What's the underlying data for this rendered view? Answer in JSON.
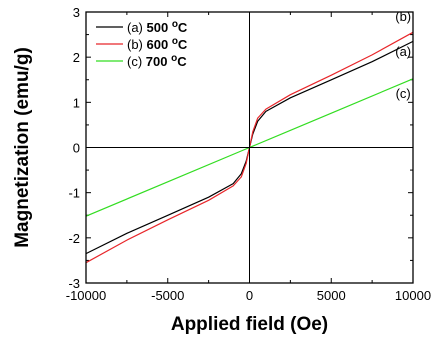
{
  "chart_data": {
    "type": "line",
    "xlabel": "Applied field (Oe)",
    "ylabel": "Magnetization (emu/g)",
    "xlim": [
      -10000,
      10000
    ],
    "ylim": [
      -3,
      3
    ],
    "xticks": [
      -10000,
      -5000,
      0,
      5000,
      10000
    ],
    "xtick_labels": [
      "-10000",
      "-5000",
      "0",
      "5000",
      "10000"
    ],
    "yticks": [
      -3,
      -2,
      -1,
      0,
      1,
      2,
      3
    ],
    "ytick_labels": [
      "-3",
      "-2",
      "-1",
      "0",
      "1",
      "2",
      "3"
    ],
    "legend": {
      "placement": "top-left",
      "entries": [
        {
          "prefix": "(a) ",
          "temp": "500",
          "unit": "C"
        },
        {
          "prefix": "(b) ",
          "temp": "600",
          "unit": "C"
        },
        {
          "prefix": "(c) ",
          "temp": "700",
          "unit": "C"
        }
      ],
      "degree_symbol": "o"
    },
    "series": [
      {
        "label": "(a)",
        "color": "#000000",
        "x": [
          -10000,
          -7500,
          -5000,
          -2500,
          -1000,
          -500,
          -200,
          0,
          200,
          500,
          1000,
          2500,
          5000,
          7500,
          10000
        ],
        "y": [
          -2.35,
          -1.9,
          -1.5,
          -1.1,
          -0.8,
          -0.58,
          -0.3,
          0,
          0.3,
          0.58,
          0.8,
          1.1,
          1.5,
          1.9,
          2.35
        ]
      },
      {
        "label": "(b)",
        "color": "#e8262a",
        "x": [
          -10000,
          -7500,
          -5000,
          -2500,
          -1000,
          -500,
          -200,
          0,
          200,
          500,
          1000,
          2500,
          5000,
          7500,
          10000
        ],
        "y": [
          -2.55,
          -2.05,
          -1.6,
          -1.17,
          -0.85,
          -0.65,
          -0.35,
          0,
          0.35,
          0.65,
          0.85,
          1.17,
          1.6,
          2.05,
          2.55
        ]
      },
      {
        "label": "(c)",
        "color": "#33dd22",
        "x": [
          -10000,
          -5000,
          0,
          5000,
          10000
        ],
        "y": [
          -1.52,
          -0.76,
          0,
          0.76,
          1.52
        ]
      }
    ],
    "curve_labels": [
      {
        "text": "(b)",
        "x": 9400,
        "y": 2.8
      },
      {
        "text": "(a)",
        "x": 9400,
        "y": 2.03
      },
      {
        "text": "(c)",
        "x": 9400,
        "y": 1.1
      }
    ],
    "grid": false
  }
}
